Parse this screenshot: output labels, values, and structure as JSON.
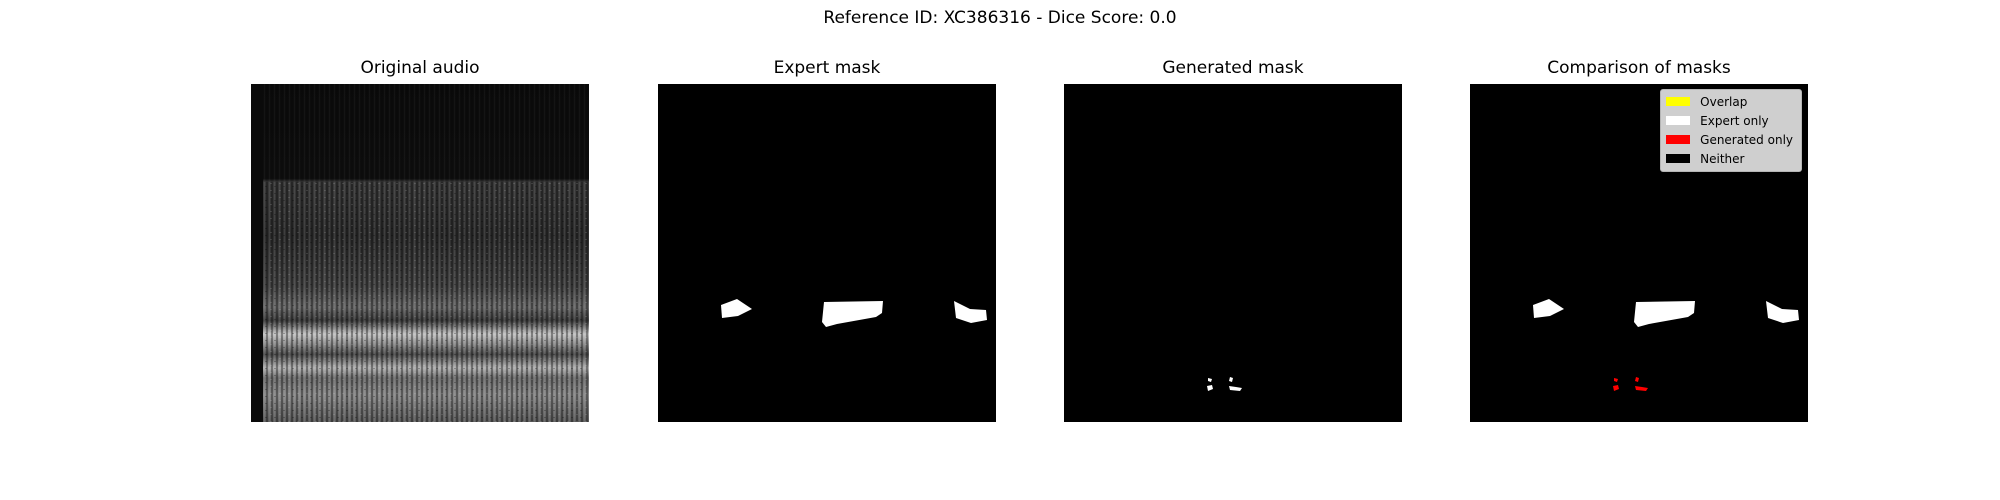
{
  "chart_data": {
    "type": "image-comparison",
    "title": "Reference ID: XC386316 - Dice Score: 0.0",
    "reference_id": "XC386316",
    "dice_score": 0.0,
    "panels": [
      {
        "title": "Original audio"
      },
      {
        "title": "Expert mask"
      },
      {
        "title": "Generated mask"
      },
      {
        "title": "Comparison of masks"
      }
    ],
    "legend": {
      "placement": "upper-right",
      "entries": [
        {
          "label": "Overlap",
          "color": "#ffff00"
        },
        {
          "label": "Expert only",
          "color": "#ffffff"
        },
        {
          "label": "Generated only",
          "color": "#ff0000"
        },
        {
          "label": "Neither",
          "color": "#000000"
        }
      ]
    },
    "colors": {
      "expert_region": "#ffffff",
      "generated_region": "#ffffff",
      "generated_only": "#ff0000"
    }
  }
}
